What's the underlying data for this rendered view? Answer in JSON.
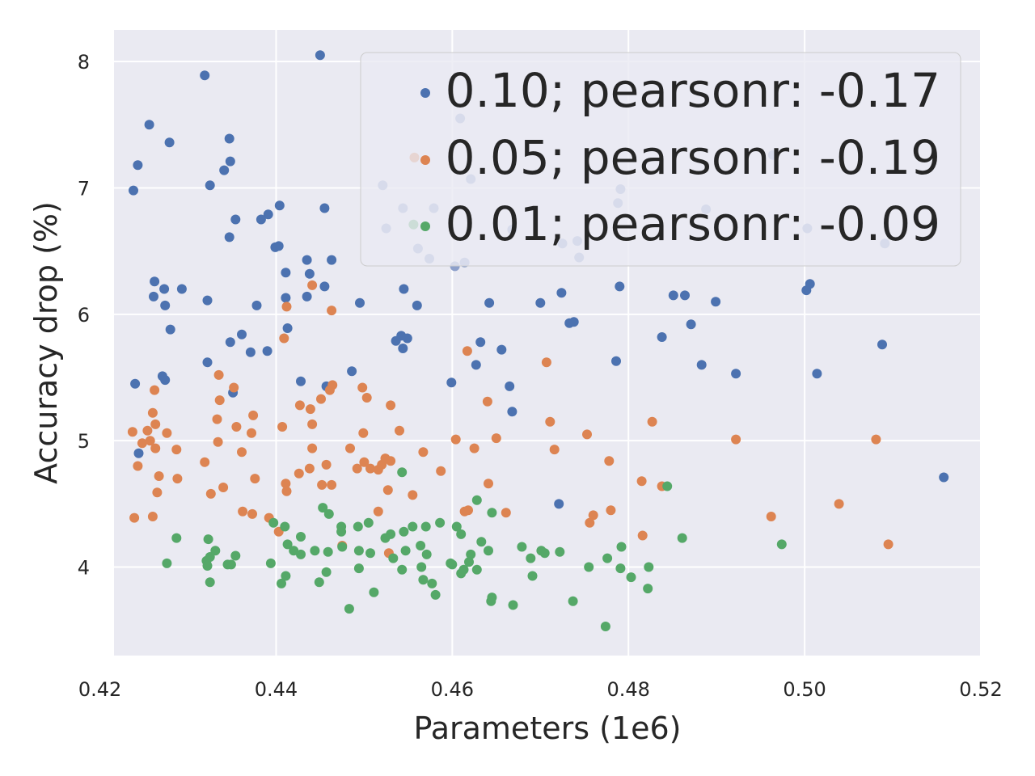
{
  "chart_data": {
    "type": "scatter",
    "title": "",
    "xlabel": "Parameters (1e6)",
    "ylabel": "Accuracy drop (%)",
    "xlim": [
      0.4216,
      0.52
    ],
    "ylim": [
      3.3,
      8.25
    ],
    "xticks": [
      0.42,
      0.44,
      0.46,
      0.48,
      0.5,
      0.52
    ],
    "xtick_labels": [
      "0.42",
      "0.44",
      "0.46",
      "0.48",
      "0.50",
      "0.52"
    ],
    "yticks": [
      4,
      5,
      6,
      7,
      8
    ],
    "ytick_labels": [
      "4",
      "5",
      "6",
      "7",
      "8"
    ],
    "grid": true,
    "legend_position": "upper-right",
    "series": [
      {
        "name": "0.10; pearsonr: -0.17",
        "color": "#4C72B0",
        "points": [
          [
            0.445,
            8.05
          ],
          [
            0.4319,
            7.89
          ],
          [
            0.4256,
            7.5
          ],
          [
            0.4347,
            7.39
          ],
          [
            0.4279,
            7.36
          ],
          [
            0.4348,
            7.21
          ],
          [
            0.4243,
            7.18
          ],
          [
            0.4341,
            7.14
          ],
          [
            0.4325,
            7.02
          ],
          [
            0.4238,
            6.98
          ],
          [
            0.4404,
            6.86
          ],
          [
            0.4455,
            6.84
          ],
          [
            0.4391,
            6.79
          ],
          [
            0.4383,
            6.75
          ],
          [
            0.4354,
            6.75
          ],
          [
            0.4403,
            6.54
          ],
          [
            0.4399,
            6.53
          ],
          [
            0.4347,
            6.61
          ],
          [
            0.4435,
            6.43
          ],
          [
            0.4463,
            6.43
          ],
          [
            0.4411,
            6.33
          ],
          [
            0.4438,
            6.32
          ],
          [
            0.4262,
            6.26
          ],
          [
            0.4273,
            6.2
          ],
          [
            0.4293,
            6.2
          ],
          [
            0.4455,
            6.22
          ],
          [
            0.4435,
            6.14
          ],
          [
            0.4411,
            6.13
          ],
          [
            0.4261,
            6.14
          ],
          [
            0.4322,
            6.11
          ],
          [
            0.4274,
            6.07
          ],
          [
            0.4378,
            6.07
          ],
          [
            0.4495,
            6.09
          ],
          [
            0.456,
            6.07
          ],
          [
            0.4545,
            6.2
          ],
          [
            0.4413,
            5.89
          ],
          [
            0.428,
            5.88
          ],
          [
            0.4361,
            5.84
          ],
          [
            0.4348,
            5.78
          ],
          [
            0.4542,
            5.83
          ],
          [
            0.4549,
            5.81
          ],
          [
            0.4536,
            5.79
          ],
          [
            0.4544,
            5.73
          ],
          [
            0.439,
            5.71
          ],
          [
            0.4371,
            5.7
          ],
          [
            0.4322,
            5.62
          ],
          [
            0.4271,
            5.51
          ],
          [
            0.4274,
            5.48
          ],
          [
            0.424,
            5.45
          ],
          [
            0.4428,
            5.47
          ],
          [
            0.4486,
            5.55
          ],
          [
            0.4457,
            5.43
          ],
          [
            0.4351,
            5.38
          ],
          [
            0.4599,
            5.46
          ],
          [
            0.4632,
            5.78
          ],
          [
            0.4656,
            5.72
          ],
          [
            0.4627,
            5.6
          ],
          [
            0.4665,
            5.43
          ],
          [
            0.4668,
            5.23
          ],
          [
            0.4642,
            6.09
          ],
          [
            0.47,
            6.09
          ],
          [
            0.4724,
            6.17
          ],
          [
            0.4733,
            5.93
          ],
          [
            0.4738,
            5.94
          ],
          [
            0.479,
            6.22
          ],
          [
            0.4786,
            5.63
          ],
          [
            0.4838,
            5.82
          ],
          [
            0.4851,
            6.15
          ],
          [
            0.4864,
            6.15
          ],
          [
            0.4871,
            5.92
          ],
          [
            0.4883,
            5.6
          ],
          [
            0.4899,
            6.1
          ],
          [
            0.4922,
            5.53
          ],
          [
            0.5002,
            6.19
          ],
          [
            0.5006,
            6.24
          ],
          [
            0.5014,
            5.53
          ],
          [
            0.5088,
            5.76
          ],
          [
            0.5158,
            4.71
          ],
          [
            0.4721,
            4.5
          ],
          [
            0.4244,
            4.9
          ]
        ]
      },
      {
        "name": "0.05; pearsonr: -0.19",
        "color": "#DD8452",
        "points": [
          [
            0.4557,
            7.24
          ],
          [
            0.4441,
            6.23
          ],
          [
            0.4412,
            6.06
          ],
          [
            0.4463,
            6.03
          ],
          [
            0.4409,
            5.81
          ],
          [
            0.4617,
            5.71
          ],
          [
            0.4707,
            5.62
          ],
          [
            0.4335,
            5.52
          ],
          [
            0.4464,
            5.44
          ],
          [
            0.4461,
            5.4
          ],
          [
            0.4451,
            5.33
          ],
          [
            0.4498,
            5.42
          ],
          [
            0.4503,
            5.34
          ],
          [
            0.4262,
            5.4
          ],
          [
            0.4336,
            5.32
          ],
          [
            0.4352,
            5.42
          ],
          [
            0.4427,
            5.28
          ],
          [
            0.454,
            5.08
          ],
          [
            0.4439,
            5.25
          ],
          [
            0.426,
            5.22
          ],
          [
            0.4333,
            5.17
          ],
          [
            0.4374,
            5.2
          ],
          [
            0.4441,
            5.13
          ],
          [
            0.4263,
            5.13
          ],
          [
            0.4355,
            5.11
          ],
          [
            0.4407,
            5.11
          ],
          [
            0.4276,
            5.06
          ],
          [
            0.4372,
            5.06
          ],
          [
            0.4237,
            5.07
          ],
          [
            0.4254,
            5.08
          ],
          [
            0.4257,
            5.0
          ],
          [
            0.4248,
            4.98
          ],
          [
            0.4334,
            4.99
          ],
          [
            0.4263,
            4.94
          ],
          [
            0.4287,
            4.93
          ],
          [
            0.4361,
            4.91
          ],
          [
            0.4441,
            4.94
          ],
          [
            0.4484,
            4.94
          ],
          [
            0.45,
            4.83
          ],
          [
            0.4457,
            4.81
          ],
          [
            0.4492,
            4.78
          ],
          [
            0.4507,
            4.78
          ],
          [
            0.4524,
            4.86
          ],
          [
            0.452,
            4.81
          ],
          [
            0.453,
            4.84
          ],
          [
            0.4516,
            4.77
          ],
          [
            0.4243,
            4.8
          ],
          [
            0.4319,
            4.83
          ],
          [
            0.4267,
            4.72
          ],
          [
            0.4288,
            4.7
          ],
          [
            0.4376,
            4.7
          ],
          [
            0.4438,
            4.78
          ],
          [
            0.4426,
            4.74
          ],
          [
            0.4411,
            4.66
          ],
          [
            0.4412,
            4.6
          ],
          [
            0.4452,
            4.65
          ],
          [
            0.4463,
            4.65
          ],
          [
            0.4265,
            4.59
          ],
          [
            0.4326,
            4.58
          ],
          [
            0.434,
            4.63
          ],
          [
            0.4527,
            4.61
          ],
          [
            0.4555,
            4.57
          ],
          [
            0.4587,
            4.76
          ],
          [
            0.4567,
            4.91
          ],
          [
            0.4499,
            5.06
          ],
          [
            0.453,
            5.28
          ],
          [
            0.4604,
            5.01
          ],
          [
            0.4625,
            4.94
          ],
          [
            0.464,
            5.31
          ],
          [
            0.465,
            5.02
          ],
          [
            0.4618,
            4.45
          ],
          [
            0.4641,
            4.66
          ],
          [
            0.4614,
            4.44
          ],
          [
            0.4661,
            4.43
          ],
          [
            0.4711,
            5.15
          ],
          [
            0.4716,
            4.93
          ],
          [
            0.4753,
            5.05
          ],
          [
            0.4778,
            4.84
          ],
          [
            0.476,
            4.41
          ],
          [
            0.4756,
            4.35
          ],
          [
            0.478,
            4.45
          ],
          [
            0.4815,
            4.68
          ],
          [
            0.4827,
            5.15
          ],
          [
            0.4838,
            4.64
          ],
          [
            0.4816,
            4.25
          ],
          [
            0.4392,
            4.39
          ],
          [
            0.4362,
            4.44
          ],
          [
            0.4373,
            4.42
          ],
          [
            0.4403,
            4.28
          ],
          [
            0.4239,
            4.39
          ],
          [
            0.426,
            4.4
          ],
          [
            0.4516,
            4.44
          ],
          [
            0.4528,
            4.11
          ],
          [
            0.4475,
            4.17
          ],
          [
            0.4922,
            5.01
          ],
          [
            0.4962,
            4.4
          ],
          [
            0.5039,
            4.5
          ],
          [
            0.5081,
            5.01
          ],
          [
            0.5095,
            4.18
          ]
        ]
      },
      {
        "name": "0.01; pearsonr: -0.09",
        "color": "#55A868",
        "points": [
          [
            0.4556,
            6.71
          ],
          [
            0.4543,
            4.75
          ],
          [
            0.4844,
            4.64
          ],
          [
            0.4628,
            4.53
          ],
          [
            0.4453,
            4.47
          ],
          [
            0.446,
            4.42
          ],
          [
            0.4474,
            4.32
          ],
          [
            0.4493,
            4.32
          ],
          [
            0.4505,
            4.35
          ],
          [
            0.4474,
            4.28
          ],
          [
            0.441,
            4.32
          ],
          [
            0.4397,
            4.35
          ],
          [
            0.453,
            4.26
          ],
          [
            0.4524,
            4.23
          ],
          [
            0.4545,
            4.28
          ],
          [
            0.4555,
            4.32
          ],
          [
            0.457,
            4.32
          ],
          [
            0.4586,
            4.35
          ],
          [
            0.4605,
            4.32
          ],
          [
            0.461,
            4.26
          ],
          [
            0.4645,
            4.43
          ],
          [
            0.4633,
            4.2
          ],
          [
            0.4641,
            4.13
          ],
          [
            0.4621,
            4.1
          ],
          [
            0.4619,
            4.04
          ],
          [
            0.46,
            4.02
          ],
          [
            0.4613,
            3.98
          ],
          [
            0.461,
            3.95
          ],
          [
            0.4628,
            3.98
          ],
          [
            0.4598,
            4.03
          ],
          [
            0.4571,
            4.1
          ],
          [
            0.4564,
            4.17
          ],
          [
            0.4547,
            4.13
          ],
          [
            0.4533,
            4.07
          ],
          [
            0.4507,
            4.11
          ],
          [
            0.4494,
            4.13
          ],
          [
            0.4475,
            4.16
          ],
          [
            0.4459,
            4.12
          ],
          [
            0.4444,
            4.13
          ],
          [
            0.4428,
            4.1
          ],
          [
            0.4413,
            4.18
          ],
          [
            0.442,
            4.13
          ],
          [
            0.4428,
            4.24
          ],
          [
            0.4411,
            3.93
          ],
          [
            0.4406,
            3.87
          ],
          [
            0.4449,
            3.88
          ],
          [
            0.4457,
            3.96
          ],
          [
            0.4494,
            3.99
          ],
          [
            0.4543,
            3.98
          ],
          [
            0.4565,
            4.0
          ],
          [
            0.4567,
            3.9
          ],
          [
            0.4577,
            3.87
          ],
          [
            0.4581,
            3.78
          ],
          [
            0.4511,
            3.8
          ],
          [
            0.4483,
            3.67
          ],
          [
            0.4645,
            3.76
          ],
          [
            0.4644,
            3.73
          ],
          [
            0.4669,
            3.7
          ],
          [
            0.4287,
            4.23
          ],
          [
            0.4276,
            4.03
          ],
          [
            0.4323,
            4.22
          ],
          [
            0.4325,
            4.08
          ],
          [
            0.4321,
            4.05
          ],
          [
            0.4331,
            4.13
          ],
          [
            0.4322,
            4.01
          ],
          [
            0.4345,
            4.02
          ],
          [
            0.4349,
            4.02
          ],
          [
            0.4354,
            4.09
          ],
          [
            0.4394,
            4.03
          ],
          [
            0.4325,
            3.88
          ],
          [
            0.4679,
            4.16
          ],
          [
            0.4689,
            4.07
          ],
          [
            0.4691,
            3.93
          ],
          [
            0.4701,
            4.13
          ],
          [
            0.4705,
            4.11
          ],
          [
            0.4722,
            4.12
          ],
          [
            0.4737,
            3.73
          ],
          [
            0.4755,
            4.0
          ],
          [
            0.4776,
            4.07
          ],
          [
            0.4792,
            4.16
          ],
          [
            0.4791,
            3.99
          ],
          [
            0.4803,
            3.92
          ],
          [
            0.4823,
            4.0
          ],
          [
            0.4822,
            3.83
          ],
          [
            0.4861,
            4.23
          ],
          [
            0.4974,
            4.18
          ],
          [
            0.4774,
            3.53
          ]
        ]
      },
      {
        "name": "",
        "color": "#8DA0CB",
        "points": [
          [
            0.4609,
            7.55
          ],
          [
            0.4621,
            7.07
          ],
          [
            0.4521,
            7.02
          ],
          [
            0.4544,
            6.84
          ],
          [
            0.4579,
            6.84
          ],
          [
            0.4525,
            6.68
          ],
          [
            0.4561,
            6.52
          ],
          [
            0.4574,
            6.44
          ],
          [
            0.4603,
            6.38
          ],
          [
            0.4614,
            6.41
          ],
          [
            0.4668,
            6.67
          ],
          [
            0.4725,
            6.56
          ],
          [
            0.4742,
            6.58
          ],
          [
            0.4744,
            6.45
          ],
          [
            0.4791,
            6.99
          ],
          [
            0.4788,
            6.88
          ],
          [
            0.4888,
            6.83
          ],
          [
            0.4964,
            7.26
          ],
          [
            0.5003,
            6.68
          ],
          [
            0.5091,
            6.56
          ]
        ]
      }
    ]
  }
}
